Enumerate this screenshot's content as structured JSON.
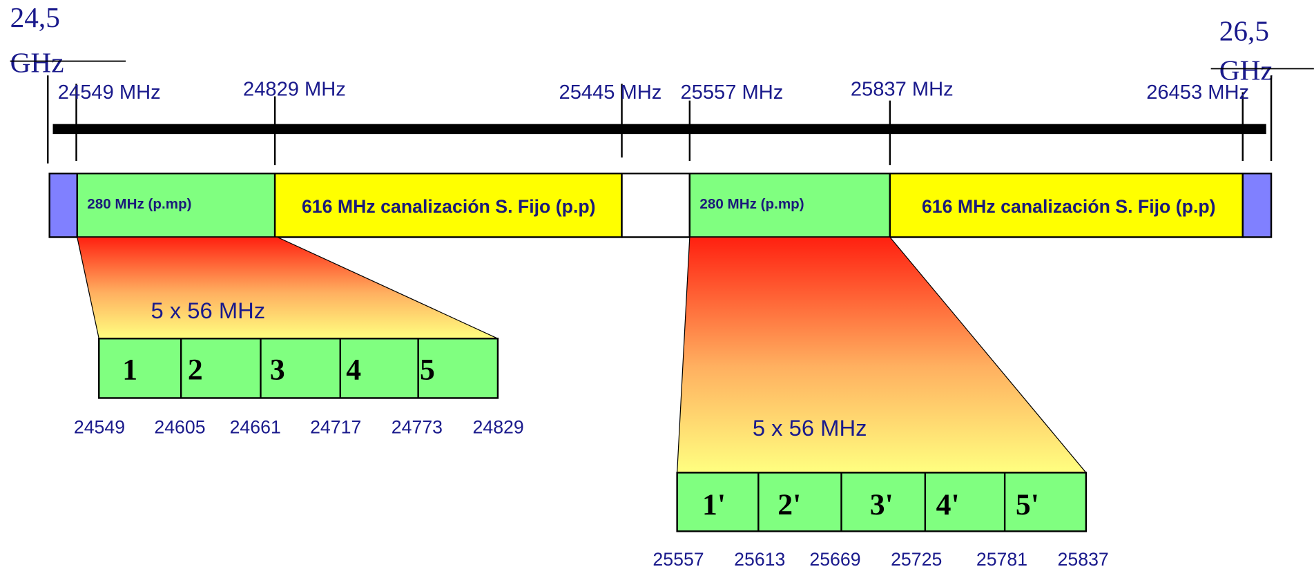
{
  "band_edges": {
    "start": {
      "value": "24,5",
      "unit": "GHz"
    },
    "end": {
      "value": "26,5",
      "unit": "GHz"
    }
  },
  "frequency_markers": [
    "24549  MHz",
    "24829  MHz",
    "25445 MHz",
    "25557 MHz",
    "25837  MHz",
    "26453  MHz"
  ],
  "segments": [
    {
      "label": "280 MHz (p.mp)"
    },
    {
      "label": "616 MHz canalización S. Fijo (p.p)"
    },
    {
      "label": "280 MHz (p.mp)"
    },
    {
      "label": "616 MHz canalización S. Fijo (p.p)"
    }
  ],
  "groups": [
    {
      "title": "5 x 56  MHz",
      "channels": [
        "1",
        "2",
        "3",
        "4",
        "5"
      ],
      "frequencies": [
        "24549",
        "24605",
        "24661",
        "24717",
        "24773",
        "24829"
      ]
    },
    {
      "title": "5 x 56  MHz",
      "channels": [
        "1'",
        "2'",
        "3'",
        "4'",
        "5'"
      ],
      "frequencies": [
        "25557",
        "25613",
        "25669",
        "25725",
        "25781",
        "25837"
      ]
    }
  ]
}
